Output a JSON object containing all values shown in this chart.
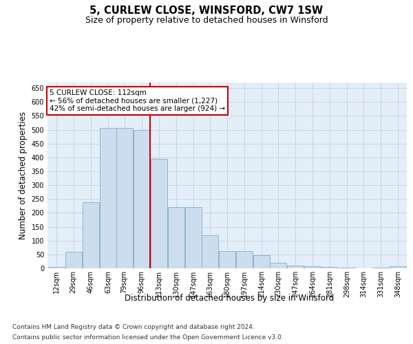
{
  "title": "5, CURLEW CLOSE, WINSFORD, CW7 1SW",
  "subtitle": "Size of property relative to detached houses in Winsford",
  "xlabel": "Distribution of detached houses by size in Winsford",
  "ylabel": "Number of detached properties",
  "bar_color": "#ccdded",
  "bar_edge_color": "#8ab4d0",
  "grid_color": "#c5d5e5",
  "background_color": "#e4eef8",
  "vline_x": 113,
  "vline_color": "#cc0000",
  "annotation_title": "5 CURLEW CLOSE: 112sqm",
  "annotation_line1": "← 56% of detached houses are smaller (1,227)",
  "annotation_line2": "42% of semi-detached houses are larger (924) →",
  "annotation_box_color": "#ffffff",
  "annotation_box_edge": "#cc0000",
  "bins_left_edges": [
    12,
    29,
    46,
    63,
    79,
    96,
    113,
    130,
    147,
    163,
    180,
    197,
    214,
    230,
    247,
    264,
    281,
    298,
    314,
    331,
    348
  ],
  "bin_width": 17,
  "bar_heights": [
    5,
    60,
    238,
    505,
    505,
    500,
    395,
    222,
    222,
    120,
    62,
    62,
    47,
    20,
    10,
    8,
    5,
    3,
    0,
    2,
    8
  ],
  "xlim": [
    12,
    365
  ],
  "ylim": [
    0,
    670
  ],
  "yticks": [
    0,
    50,
    100,
    150,
    200,
    250,
    300,
    350,
    400,
    450,
    500,
    550,
    600,
    650
  ],
  "xtick_labels": [
    "12sqm",
    "29sqm",
    "46sqm",
    "63sqm",
    "79sqm",
    "96sqm",
    "113sqm",
    "130sqm",
    "147sqm",
    "163sqm",
    "180sqm",
    "197sqm",
    "214sqm",
    "230sqm",
    "247sqm",
    "264sqm",
    "281sqm",
    "298sqm",
    "314sqm",
    "331sqm",
    "348sqm"
  ],
  "footnote1": "Contains HM Land Registry data © Crown copyright and database right 2024.",
  "footnote2": "Contains public sector information licensed under the Open Government Licence v3.0.",
  "title_fontsize": 10.5,
  "subtitle_fontsize": 9,
  "axis_label_fontsize": 8.5,
  "tick_fontsize": 7,
  "annotation_fontsize": 7.5,
  "footnote_fontsize": 6.5
}
